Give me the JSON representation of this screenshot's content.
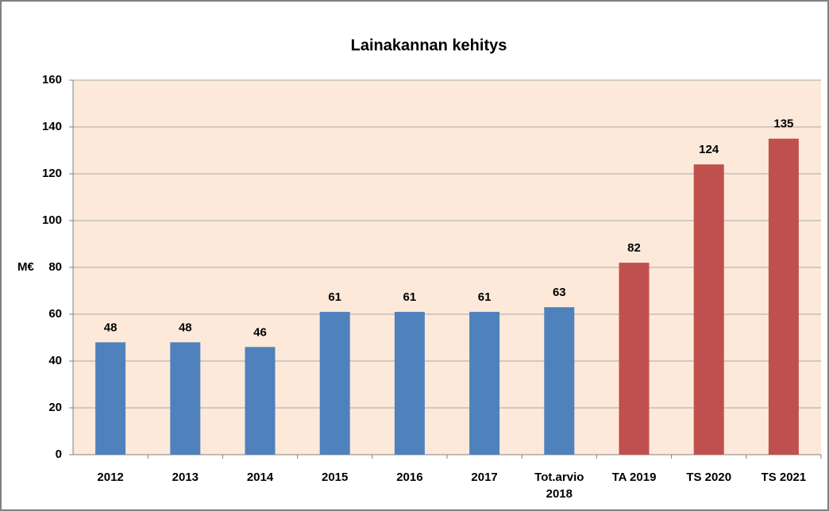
{
  "chart_data": {
    "type": "bar",
    "title": "Lainakannan kehitys",
    "ylabel": "M€",
    "categories": [
      "2012",
      "2013",
      "2014",
      "2015",
      "2016",
      "2017",
      "Tot.arvio 2018",
      "TA 2019",
      "TS 2020",
      "TS 2021"
    ],
    "values": [
      48,
      48,
      46,
      61,
      61,
      61,
      63,
      82,
      124,
      135
    ],
    "colors": [
      "#4f81bd",
      "#4f81bd",
      "#4f81bd",
      "#4f81bd",
      "#4f81bd",
      "#4f81bd",
      "#4f81bd",
      "#c0504d",
      "#c0504d",
      "#c0504d"
    ],
    "ylim": [
      0,
      160
    ],
    "yticks": [
      0,
      20,
      40,
      60,
      80,
      100,
      120,
      140,
      160
    ],
    "grid": true
  }
}
